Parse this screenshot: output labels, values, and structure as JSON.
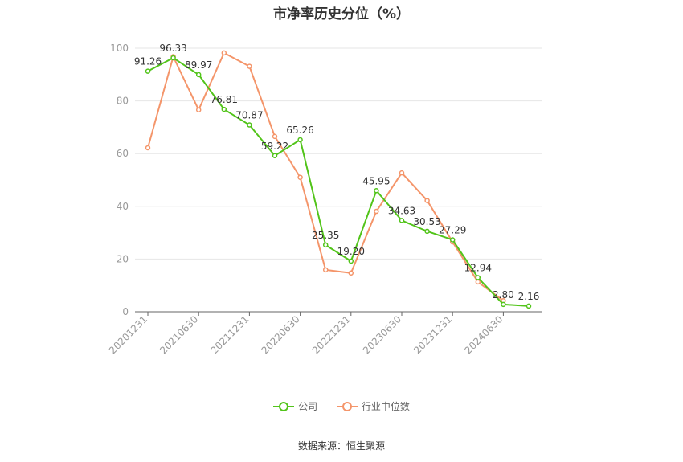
{
  "chart_data": {
    "type": "line",
    "title": "市净率历史分位（%）",
    "x": [
      "20201231",
      "20210331",
      "20210630",
      "20210930",
      "20211231",
      "20220331",
      "20220630",
      "20220930",
      "20221231",
      "20230331",
      "20230630",
      "20230930",
      "20231231",
      "20240331",
      "20240630",
      "20240930"
    ],
    "xtick_labels": [
      "20201231",
      "20210630",
      "20211231",
      "20220630",
      "20221231",
      "20230630",
      "20231231",
      "20240630"
    ],
    "ylim": [
      0,
      100
    ],
    "yticks": [
      0,
      20,
      40,
      60,
      80,
      100
    ],
    "grid": true,
    "legend_position": "bottom",
    "series": [
      {
        "name": "公司",
        "color": "#52c41a",
        "values": [
          91.26,
          96.33,
          89.97,
          76.81,
          70.87,
          59.22,
          65.26,
          25.35,
          19.2,
          45.95,
          34.63,
          30.53,
          27.29,
          12.94,
          2.8,
          2.16
        ],
        "labels": [
          "91.26",
          "96.33",
          "89.97",
          "76.81",
          "70.87",
          "59.22",
          "65.26",
          "25.35",
          "19.20",
          "45.95",
          "34.63",
          "30.53",
          "27.29",
          "12.94",
          "2.80",
          "2.16"
        ]
      },
      {
        "name": "行业中位数",
        "color": "#f4956a",
        "values": [
          62.2,
          96.8,
          76.6,
          98.2,
          93.1,
          66.5,
          51.0,
          15.9,
          14.7,
          38.1,
          52.7,
          42.2,
          26.5,
          11.3,
          4.2,
          null
        ]
      }
    ]
  },
  "source": "数据来源：恒生聚源"
}
